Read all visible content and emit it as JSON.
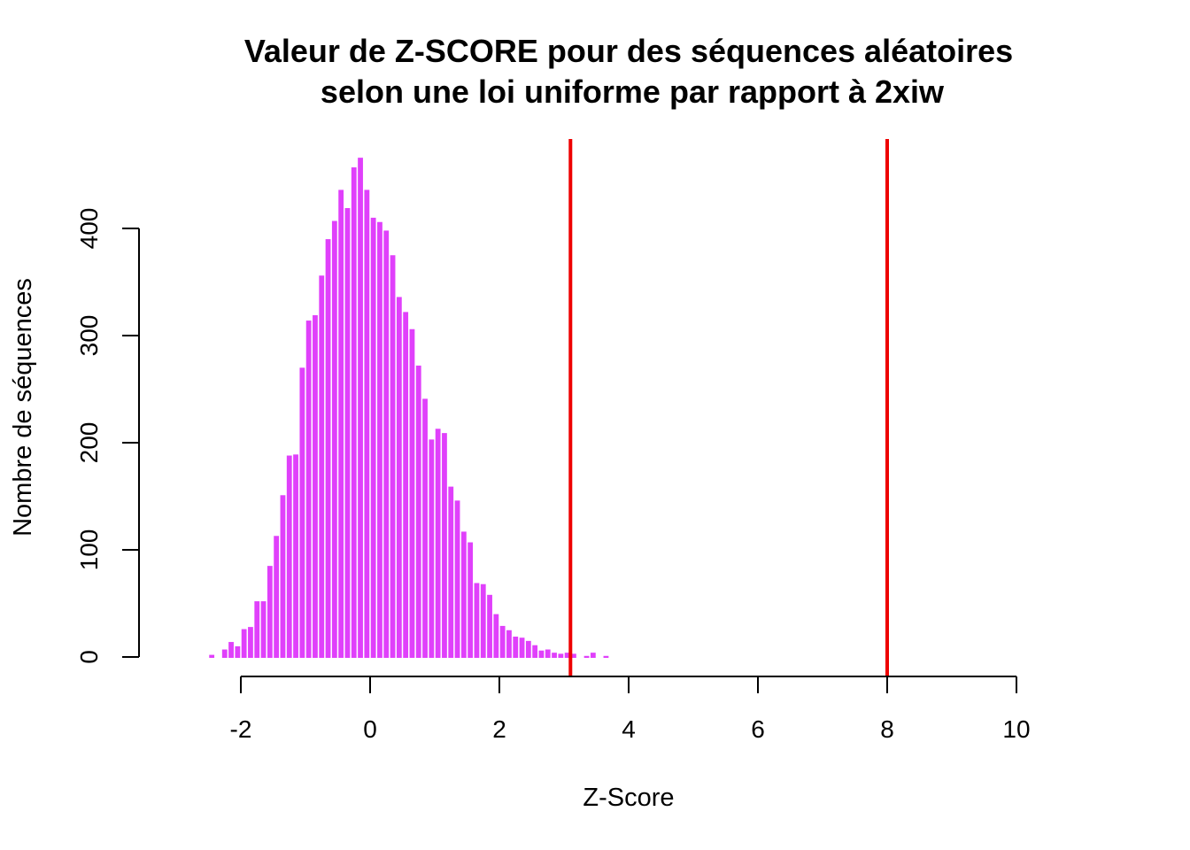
{
  "chart_data": {
    "type": "bar",
    "title_line1": "Valeur de Z-SCORE pour des séquences aléatoires",
    "title_line2": "selon une loi uniforme par rapport à 2xiw",
    "xlabel": "Z-Score",
    "ylabel": "Nombre de séquences",
    "xlim": [
      -2,
      10
    ],
    "ylim": [
      0,
      400
    ],
    "x_ticks": [
      -2,
      0,
      2,
      4,
      6,
      8,
      10
    ],
    "y_ticks": [
      0,
      100,
      200,
      300,
      400
    ],
    "bar_color": "#e040fb",
    "vline_color": "#ee0000",
    "grid": false,
    "legend": "none",
    "vertical_lines": [
      3.1,
      8.0
    ],
    "bin_width": 0.1,
    "bin_centers": [
      -2.45,
      -2.25,
      -2.15,
      -2.05,
      -1.95,
      -1.85,
      -1.75,
      -1.65,
      -1.55,
      -1.45,
      -1.35,
      -1.25,
      -1.15,
      -1.05,
      -0.95,
      -0.85,
      -0.75,
      -0.65,
      -0.55,
      -0.45,
      -0.35,
      -0.25,
      -0.15,
      -0.05,
      0.05,
      0.15,
      0.25,
      0.35,
      0.45,
      0.55,
      0.65,
      0.75,
      0.85,
      0.95,
      1.05,
      1.15,
      1.25,
      1.35,
      1.45,
      1.55,
      1.65,
      1.75,
      1.85,
      1.95,
      2.05,
      2.15,
      2.25,
      2.35,
      2.45,
      2.55,
      2.65,
      2.75,
      2.85,
      2.95,
      3.05,
      3.15,
      3.35,
      3.45,
      3.65
    ],
    "values": [
      2,
      7,
      14,
      10,
      26,
      28,
      52,
      52,
      85,
      113,
      151,
      188,
      189,
      270,
      314,
      319,
      356,
      390,
      407,
      436,
      419,
      457,
      466,
      436,
      410,
      406,
      398,
      375,
      336,
      322,
      306,
      272,
      241,
      203,
      213,
      209,
      159,
      146,
      117,
      107,
      69,
      68,
      58,
      40,
      29,
      25,
      19,
      18,
      15,
      11,
      6,
      7,
      4,
      3,
      4,
      3,
      1,
      4,
      1
    ]
  }
}
